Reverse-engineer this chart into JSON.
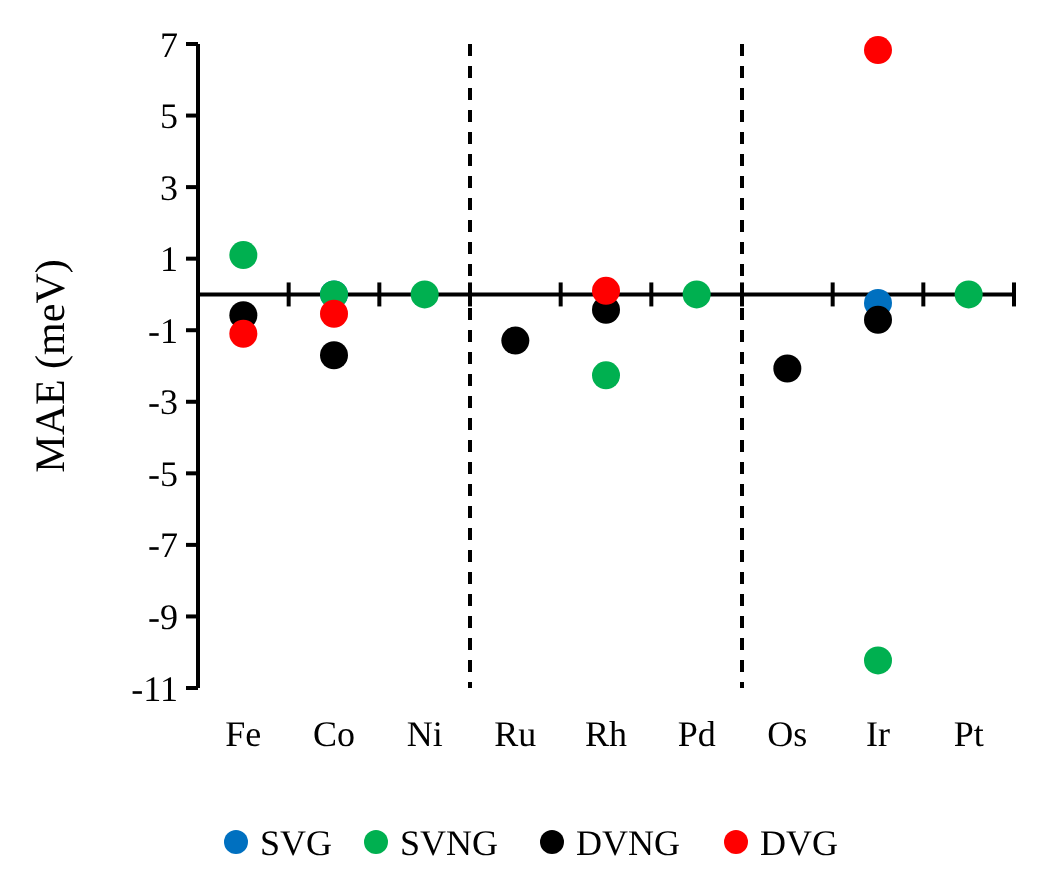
{
  "chart_data": {
    "type": "scatter",
    "ylabel": "MAE (meV)",
    "categories": [
      "Fe",
      "Co",
      "Ni",
      "Ru",
      "Rh",
      "Pd",
      "Os",
      "Ir",
      "Pt"
    ],
    "ylim": [
      -11,
      7
    ],
    "yticks": [
      -11,
      -9,
      -7,
      -5,
      -3,
      -1,
      1,
      3,
      5,
      7
    ],
    "grid": false,
    "legend": "bottom",
    "marker": "circle",
    "series": [
      {
        "name": "SVG",
        "color": "#0070c0",
        "values": [
          null,
          0,
          null,
          null,
          null,
          null,
          null,
          -0.24,
          null
        ]
      },
      {
        "name": "SVNG",
        "color": "#00b050",
        "values": [
          1.1,
          0,
          0,
          null,
          -2.26,
          0,
          null,
          -10.23,
          0
        ]
      },
      {
        "name": "DVNG",
        "color": "#000000",
        "values": [
          -0.58,
          -1.7,
          null,
          -1.29,
          -0.43,
          null,
          -2.07,
          -0.71,
          null
        ]
      },
      {
        "name": "DVG",
        "color": "#ff0000",
        "values": [
          -1.1,
          -0.54,
          null,
          null,
          0.1,
          null,
          null,
          6.83,
          null
        ]
      }
    ]
  }
}
